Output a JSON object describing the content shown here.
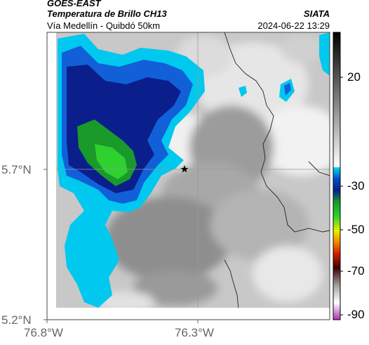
{
  "header": {
    "satellite": "GOES-EAST",
    "product": "Temperatura de Brillo CH13",
    "route": "Vía Medellín - Quibdó 50km",
    "agency": "SIATA",
    "timestamp": "2024-06-22 13:29"
  },
  "axes": {
    "lat_ticks": [
      "5.7°N",
      "5.2°N"
    ],
    "lon_ticks": [
      "76.8°W",
      "76.3°W"
    ]
  },
  "colorbar": {
    "tick_labels": [
      "20",
      "-30",
      "-50",
      "-70",
      "-90"
    ],
    "colors": {
      "warm_top": "#000000",
      "warm_bottom": "#ffffff",
      "cyan": "#00c8ee",
      "blue": "#0a1e8c",
      "green": "#2ed12e",
      "yellow": "#e6f000",
      "red": "#d21e00",
      "magenta": "#c040c0"
    }
  },
  "map": {
    "marker_icon": "star-icon",
    "gridline_color": "#9a9a9a",
    "border_color": "#222222"
  }
}
